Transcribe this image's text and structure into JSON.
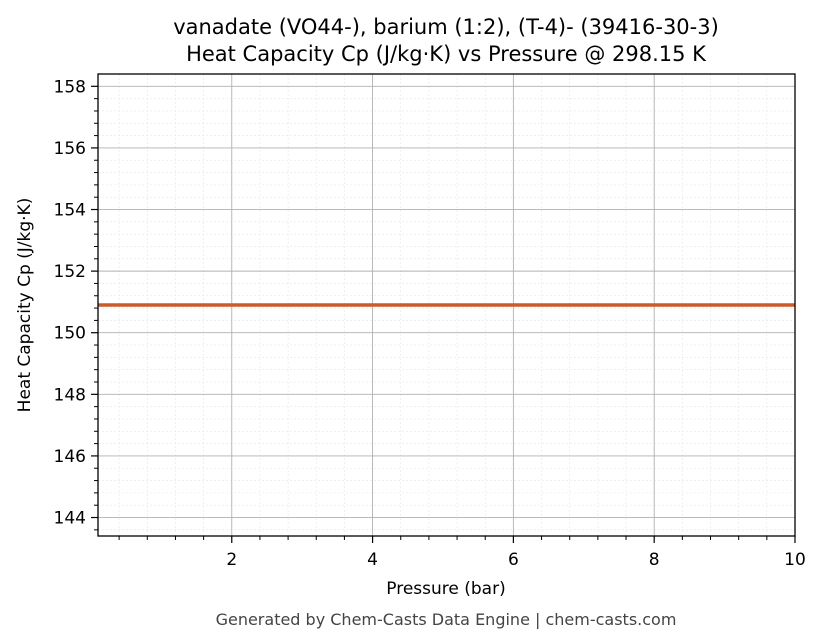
{
  "chart_data": {
    "type": "line",
    "title_line1": "vanadate (VO44-), barium (1:2), (T-4)- (39416-30-3)",
    "title_line2": "Heat Capacity Cp (J/kg·K) vs Pressure @ 298.15 K",
    "xlabel": "Pressure (bar)",
    "ylabel": "Heat Capacity Cp (J/kg·K)",
    "xlim": [
      0.1,
      10
    ],
    "ylim": [
      143.4,
      158.4
    ],
    "x_ticks": [
      2,
      4,
      6,
      8,
      10
    ],
    "y_ticks": [
      144,
      146,
      148,
      150,
      152,
      154,
      156,
      158
    ],
    "grid": true,
    "series": [
      {
        "x": [
          0.1,
          10
        ],
        "y": [
          150.9,
          150.9
        ],
        "color": "#cc5a2c"
      }
    ]
  },
  "footer": "Generated by Chem-Casts Data Engine | chem-casts.com"
}
